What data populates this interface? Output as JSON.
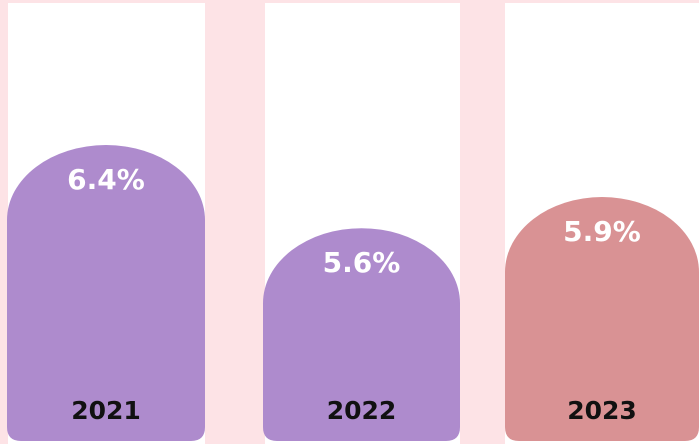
{
  "chart_data": {
    "type": "bar",
    "categories": [
      "2021",
      "2022",
      "2023"
    ],
    "values": [
      6.4,
      5.6,
      5.9
    ],
    "value_labels": [
      "6.4%",
      "5.6%",
      "5.9%"
    ],
    "colors": [
      "#ae8bcd",
      "#ae8bcd",
      "#d99294"
    ]
  }
}
